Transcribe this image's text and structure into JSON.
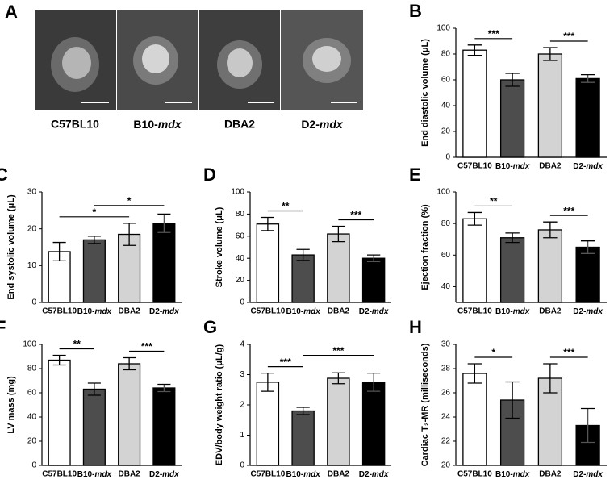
{
  "panel_a": {
    "letter": "A",
    "labels": [
      "C57BL10",
      "B10-mdx",
      "DBA2",
      "D2-mdx"
    ]
  },
  "chart_data": [
    {
      "type": "bar",
      "letter": "B",
      "y_label": "End diastolic volume (μL)",
      "categories": [
        "C57BL10",
        "B10-mdx",
        "DBA2",
        "D2-mdx"
      ],
      "values": [
        83,
        60,
        80,
        61
      ],
      "errors": [
        4,
        5,
        5,
        3
      ],
      "colors": [
        "#ffffff",
        "#4d4d4d",
        "#d3d3d3",
        "#000000"
      ],
      "ylim": [
        0,
        100
      ],
      "yticks": [
        0,
        20,
        40,
        60,
        80,
        100
      ],
      "significance": [
        {
          "from": 0,
          "to": 1,
          "label": "***"
        },
        {
          "from": 2,
          "to": 3,
          "label": "***"
        }
      ]
    },
    {
      "type": "bar",
      "letter": "C",
      "y_label": "End systolic volume (μL)",
      "categories": [
        "C57BL10",
        "B10-mdx",
        "DBA2",
        "D2-mdx"
      ],
      "values": [
        13.8,
        17,
        18.5,
        21.5
      ],
      "errors": [
        2.5,
        1,
        3,
        2.5
      ],
      "colors": [
        "#ffffff",
        "#4d4d4d",
        "#d3d3d3",
        "#000000"
      ],
      "ylim": [
        0,
        30
      ],
      "yticks": [
        0,
        10,
        20,
        30
      ],
      "significance": [
        {
          "from": 0,
          "to": 2,
          "label": "*"
        },
        {
          "from": 1,
          "to": 3,
          "label": "*"
        }
      ]
    },
    {
      "type": "bar",
      "letter": "D",
      "y_label": "Stroke volume (μL)",
      "categories": [
        "C57BL10",
        "B10-mdx",
        "DBA2",
        "D2-mdx"
      ],
      "values": [
        71,
        43,
        62,
        40
      ],
      "errors": [
        6,
        5,
        7,
        3
      ],
      "colors": [
        "#ffffff",
        "#4d4d4d",
        "#d3d3d3",
        "#000000"
      ],
      "ylim": [
        0,
        100
      ],
      "yticks": [
        0,
        20,
        40,
        60,
        80,
        100
      ],
      "significance": [
        {
          "from": 0,
          "to": 1,
          "label": "**"
        },
        {
          "from": 2,
          "to": 3,
          "label": "***"
        }
      ]
    },
    {
      "type": "bar",
      "letter": "E",
      "y_label": "Ejection fraction (%)",
      "categories": [
        "C57BL10",
        "B10-mdx",
        "DBA2",
        "D2-mdx"
      ],
      "values": [
        83,
        71,
        76,
        65
      ],
      "errors": [
        4,
        3,
        5,
        4
      ],
      "colors": [
        "#ffffff",
        "#4d4d4d",
        "#d3d3d3",
        "#000000"
      ],
      "ylim": [
        30,
        100
      ],
      "yticks": [
        40,
        60,
        80,
        100
      ],
      "significance": [
        {
          "from": 0,
          "to": 1,
          "label": "**"
        },
        {
          "from": 2,
          "to": 3,
          "label": "***"
        }
      ]
    },
    {
      "type": "bar",
      "letter": "F",
      "y_label": "LV mass (mg)",
      "categories": [
        "C57BL10",
        "B10-mdx",
        "DBA2",
        "D2-mdx"
      ],
      "values": [
        87,
        63,
        84,
        64
      ],
      "errors": [
        4,
        5,
        5,
        3
      ],
      "colors": [
        "#ffffff",
        "#4d4d4d",
        "#d3d3d3",
        "#000000"
      ],
      "ylim": [
        0,
        100
      ],
      "yticks": [
        0,
        20,
        40,
        60,
        80,
        100
      ],
      "significance": [
        {
          "from": 0,
          "to": 1,
          "label": "**"
        },
        {
          "from": 2,
          "to": 3,
          "label": "***"
        }
      ]
    },
    {
      "type": "bar",
      "letter": "G",
      "y_label": "EDV/body weight ratio (μL/g)",
      "categories": [
        "C57BL10",
        "B10-mdx",
        "DBA2",
        "D2-mdx"
      ],
      "values": [
        2.75,
        1.8,
        2.88,
        2.75
      ],
      "errors": [
        0.3,
        0.12,
        0.18,
        0.3
      ],
      "colors": [
        "#ffffff",
        "#4d4d4d",
        "#d3d3d3",
        "#000000"
      ],
      "ylim": [
        0,
        4
      ],
      "yticks": [
        0,
        1,
        2,
        3,
        4
      ],
      "significance": [
        {
          "from": 0,
          "to": 1,
          "label": "***"
        },
        {
          "from": 1,
          "to": 3,
          "label": "***"
        }
      ]
    },
    {
      "type": "bar",
      "letter": "H",
      "y_label": "Cardiac T₂-MR (milliseconds)",
      "categories": [
        "C57BL10",
        "B10-mdx",
        "DBA2",
        "D2-mdx"
      ],
      "values": [
        27.6,
        25.4,
        27.2,
        23.3
      ],
      "errors": [
        0.8,
        1.5,
        1.2,
        1.4
      ],
      "colors": [
        "#ffffff",
        "#4d4d4d",
        "#d3d3d3",
        "#000000"
      ],
      "ylim": [
        20,
        30
      ],
      "yticks": [
        20,
        22,
        24,
        26,
        28,
        30
      ],
      "significance": [
        {
          "from": 0,
          "to": 1,
          "label": "*"
        },
        {
          "from": 2,
          "to": 3,
          "label": "***"
        }
      ]
    }
  ]
}
